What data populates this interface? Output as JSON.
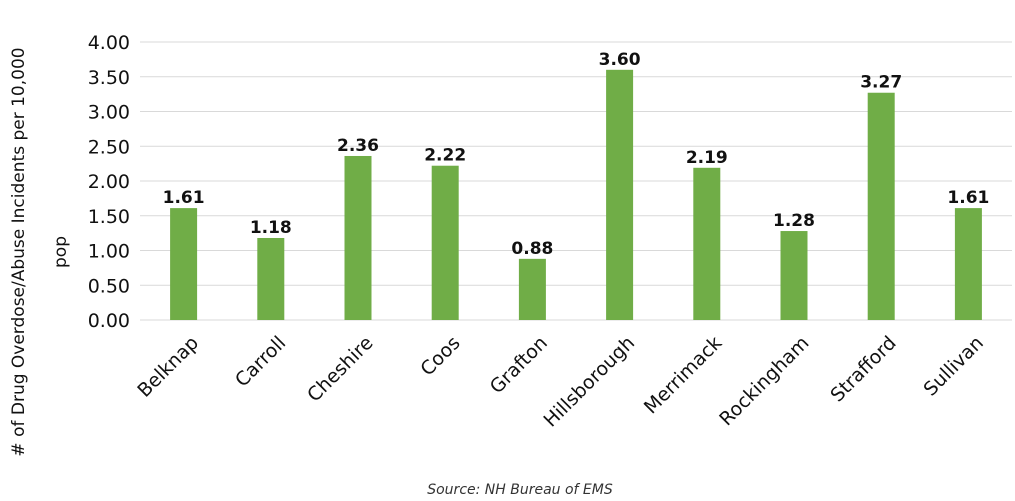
{
  "chart_data": {
    "type": "bar",
    "categories": [
      "Belknap",
      "Carroll",
      "Cheshire",
      "Coos",
      "Grafton",
      "Hillsborough",
      "Merrimack",
      "Rockingham",
      "Strafford",
      "Sullivan"
    ],
    "values": [
      1.61,
      1.18,
      2.36,
      2.22,
      0.88,
      3.6,
      2.19,
      1.28,
      3.27,
      1.61
    ],
    "value_labels": [
      "1.61",
      "1.18",
      "2.36",
      "2.22",
      "0.88",
      "3.60",
      "2.19",
      "1.28",
      "3.27",
      "1.61"
    ],
    "ylabel_line1": "# of Drug Overdose/Abuse Incidents per 10,000",
    "ylabel_line2": "pop",
    "yticks": [
      "0.00",
      "0.50",
      "1.00",
      "1.50",
      "2.00",
      "2.50",
      "3.00",
      "3.50",
      "4.00"
    ],
    "ylim": [
      0,
      4
    ],
    "grid": true,
    "bar_color": "#70ad47",
    "grid_color": "#d9d9d9",
    "source": "Source: NH Bureau of EMS"
  }
}
